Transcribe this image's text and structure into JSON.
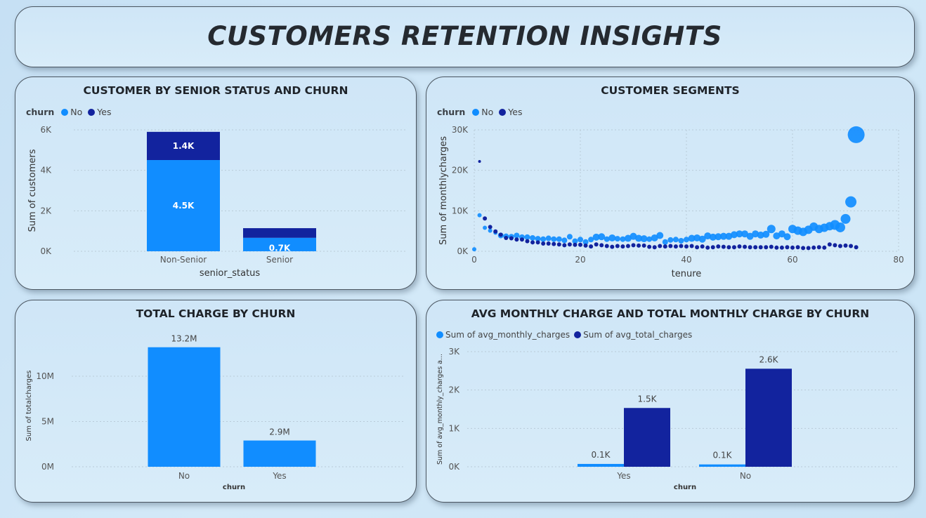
{
  "page": {
    "title": "CUSTOMERS RETENTION INSIGHTS"
  },
  "colors": {
    "no": "#118dff",
    "yes": "#12239e"
  },
  "chart_data": [
    {
      "id": "senior",
      "type": "bar",
      "stacked": true,
      "title": "CUSTOMER BY SENIOR STATUS AND CHURN",
      "legend_title": "churn",
      "xlabel": "senior_status",
      "ylabel": "Sum of customers",
      "categories": [
        "Non-Senior",
        "Senior"
      ],
      "series": [
        {
          "name": "No",
          "values": [
            4508,
            666
          ],
          "labels": [
            "4.5K",
            "0.7K"
          ]
        },
        {
          "name": "Yes",
          "values": [
            1393,
            476
          ],
          "labels": [
            "1.4K",
            ""
          ]
        }
      ],
      "yticks": [
        "0K",
        "2K",
        "4K",
        "6K"
      ],
      "ylim": [
        0,
        6000
      ],
      "grid": true,
      "legend": "top-left"
    },
    {
      "id": "segments",
      "type": "scatter",
      "title": "CUSTOMER SEGMENTS",
      "legend_title": "churn",
      "xlabel": "tenure",
      "ylabel": "Sum of monthlycharges",
      "xticks": [
        "0",
        "20",
        "40",
        "60",
        "80"
      ],
      "yticks": [
        "0K",
        "10K",
        "20K",
        "30K"
      ],
      "xlim": [
        0,
        80
      ],
      "ylim": [
        0,
        30000
      ],
      "grid": true,
      "legend": "top-left",
      "series": [
        {
          "name": "No",
          "x": [
            0,
            1,
            2,
            3,
            4,
            5,
            6,
            7,
            8,
            9,
            10,
            11,
            12,
            13,
            14,
            15,
            16,
            17,
            18,
            19,
            20,
            21,
            22,
            23,
            24,
            25,
            26,
            27,
            28,
            29,
            30,
            31,
            32,
            33,
            34,
            35,
            36,
            37,
            38,
            39,
            40,
            41,
            42,
            43,
            44,
            45,
            46,
            47,
            48,
            49,
            50,
            51,
            52,
            53,
            54,
            55,
            56,
            57,
            58,
            59,
            60,
            61,
            62,
            63,
            64,
            65,
            66,
            67,
            68,
            69,
            70,
            71,
            72
          ],
          "y": [
            500,
            8900,
            5800,
            5100,
            4600,
            3900,
            3700,
            3600,
            3900,
            3500,
            3500,
            3300,
            3100,
            3000,
            3200,
            3000,
            3000,
            2700,
            3600,
            2500,
            2900,
            2300,
            2900,
            3500,
            3600,
            3000,
            3300,
            3100,
            3000,
            3200,
            3700,
            3200,
            3100,
            3000,
            3300,
            3900,
            2300,
            2800,
            2900,
            2600,
            2900,
            3200,
            3300,
            3000,
            3800,
            3500,
            3600,
            3700,
            3700,
            4100,
            4300,
            4300,
            3700,
            4300,
            4000,
            4200,
            5500,
            3800,
            4300,
            3600,
            5500,
            5100,
            4800,
            5300,
            6100,
            5500,
            5800,
            6200,
            6500,
            5900,
            8000,
            12200,
            28800
          ],
          "sizes": [
            3,
            3,
            3,
            3,
            3,
            4,
            4,
            4,
            4,
            4,
            4,
            4,
            4,
            4,
            4,
            4,
            4,
            4,
            4,
            4,
            4,
            4,
            4,
            5,
            5,
            4,
            5,
            4,
            4,
            5,
            5,
            5,
            5,
            4,
            5,
            5,
            4,
            4,
            4,
            4,
            4,
            5,
            5,
            5,
            5,
            5,
            5,
            5,
            5,
            5,
            5,
            5,
            5,
            5,
            5,
            5,
            6,
            5,
            5,
            5,
            6,
            6,
            6,
            6,
            6,
            6,
            6,
            6,
            7,
            7,
            7,
            8,
            12
          ]
        },
        {
          "name": "Yes",
          "x": [
            1,
            2,
            3,
            4,
            5,
            6,
            7,
            8,
            9,
            10,
            11,
            12,
            13,
            14,
            15,
            16,
            17,
            18,
            19,
            20,
            21,
            22,
            23,
            24,
            25,
            26,
            27,
            28,
            29,
            30,
            31,
            32,
            33,
            34,
            35,
            36,
            37,
            38,
            39,
            40,
            41,
            42,
            43,
            44,
            45,
            46,
            47,
            48,
            49,
            50,
            51,
            52,
            53,
            54,
            55,
            56,
            57,
            58,
            59,
            60,
            61,
            62,
            63,
            64,
            65,
            66,
            67,
            68,
            69,
            70,
            71,
            72
          ],
          "y": [
            22200,
            8100,
            6000,
            4900,
            4100,
            3300,
            3200,
            2900,
            2900,
            2500,
            2200,
            2200,
            1900,
            1900,
            1800,
            1700,
            1500,
            1700,
            1600,
            1600,
            1400,
            1200,
            1700,
            1500,
            1300,
            1100,
            1300,
            1200,
            1300,
            1500,
            1400,
            1400,
            1100,
            1000,
            1300,
            1200,
            1300,
            1200,
            1300,
            1200,
            1300,
            1000,
            1200,
            900,
            1000,
            1200,
            1100,
            1000,
            1000,
            1200,
            1100,
            1000,
            1000,
            1000,
            1000,
            1100,
            900,
            900,
            1000,
            900,
            1000,
            800,
            800,
            900,
            1000,
            900,
            1700,
            1500,
            1300,
            1400,
            1300,
            1000
          ],
          "sizes": [
            2,
            3,
            3,
            3,
            3,
            3,
            3,
            3,
            3,
            3,
            3,
            3,
            3,
            3,
            3,
            3,
            3,
            3,
            3,
            3,
            3,
            3,
            3,
            3,
            3,
            3,
            3,
            3,
            3,
            3,
            3,
            3,
            3,
            3,
            3,
            3,
            3,
            3,
            3,
            3,
            3,
            3,
            3,
            3,
            3,
            3,
            3,
            3,
            3,
            3,
            3,
            3,
            3,
            3,
            3,
            3,
            3,
            3,
            3,
            3,
            3,
            3,
            3,
            3,
            3,
            3,
            3,
            3,
            3,
            3,
            3,
            3
          ]
        }
      ]
    },
    {
      "id": "total",
      "type": "bar",
      "title": "TOTAL CHARGE BY CHURN",
      "xlabel": "churn",
      "ylabel": "Sum of totalcharges",
      "categories": [
        "No",
        "Yes"
      ],
      "values": [
        13200000,
        2900000
      ],
      "labels": [
        "13.2M",
        "2.9M"
      ],
      "yticks": [
        "0M",
        "5M",
        "10M"
      ],
      "ylim": [
        0,
        14000000
      ],
      "grid": true
    },
    {
      "id": "avg",
      "type": "bar",
      "title": "AVG MONTHLY CHARGE AND TOTAL MONTHLY CHARGE BY CHURN",
      "xlabel": "churn",
      "ylabel": "Sum of avg_monthly_charges a...",
      "categories": [
        "Yes",
        "No"
      ],
      "series": [
        {
          "name": "Sum of avg_monthly_charges",
          "values": [
            74,
            61
          ],
          "labels": [
            "0.1K",
            "0.1K"
          ]
        },
        {
          "name": "Sum of avg_total_charges",
          "values": [
            1532,
            2555
          ],
          "labels": [
            "1.5K",
            "2.6K"
          ]
        }
      ],
      "yticks": [
        "0K",
        "1K",
        "2K",
        "3K"
      ],
      "ylim": [
        0,
        3000
      ],
      "grid": true,
      "legend": "top-left"
    }
  ]
}
